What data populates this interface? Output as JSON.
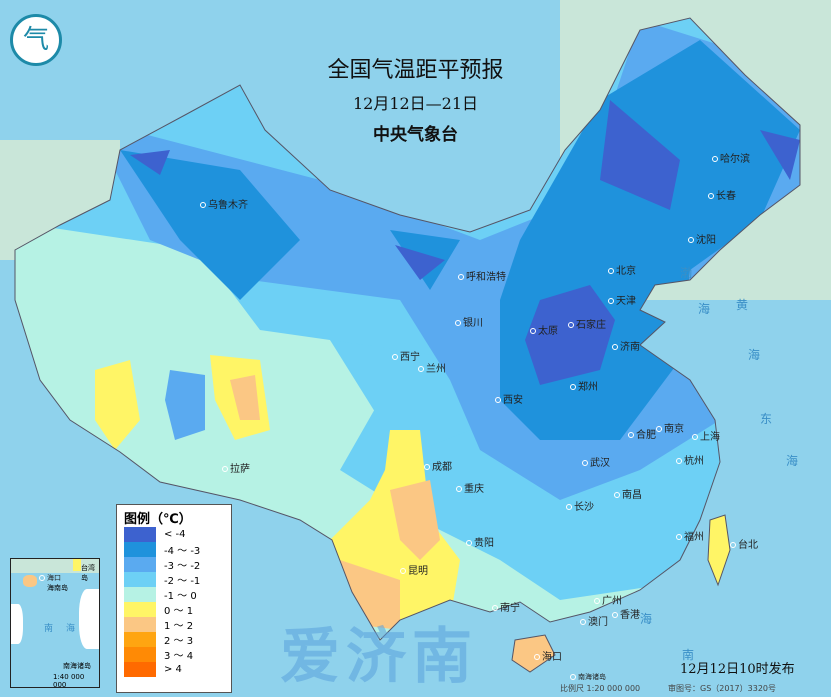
{
  "header": {
    "title": "全国气温距平预报",
    "period": "12月12日—21日",
    "issuer": "中央气象台",
    "logo_text": "气"
  },
  "legend": {
    "title": "图例（℃）",
    "items": [
      {
        "label": "< -4",
        "color": "#3d62cf"
      },
      {
        "label": "-4 ～ -3",
        "color": "#1f92dc"
      },
      {
        "label": "-3 ～ -2",
        "color": "#5aaaf0"
      },
      {
        "label": "-2 ～ -1",
        "color": "#6dd0f5"
      },
      {
        "label": "-1 ～ 0",
        "color": "#b6f2e4"
      },
      {
        "label": "0 ～ 1",
        "color": "#fff566"
      },
      {
        "label": "1 ～ 2",
        "color": "#fbc784"
      },
      {
        "label": "2 ～ 3",
        "color": "#ffa511"
      },
      {
        "label": "3 ～ 4",
        "color": "#ff8a05"
      },
      {
        "label": "> 4",
        "color": "#ff6a00"
      }
    ]
  },
  "cities": [
    "乌鲁木齐",
    "哈尔滨",
    "长春",
    "沈阳",
    "呼和浩特",
    "北京",
    "天津",
    "石家庄",
    "太原",
    "济南",
    "银川",
    "西宁",
    "兰州",
    "郑州",
    "西安",
    "拉萨",
    "成都",
    "重庆",
    "武汉",
    "合肥",
    "南京",
    "上海",
    "杭州",
    "长沙",
    "南昌",
    "贵阳",
    "昆明",
    "福州",
    "台北",
    "南宁",
    "广州",
    "香港",
    "澳门",
    "海口",
    "南海诸岛"
  ],
  "seas": [
    "渤",
    "海",
    "黄",
    "海",
    "东",
    "海",
    "南",
    "海"
  ],
  "inset": {
    "labels": [
      "海口",
      "海南岛",
      "台湾岛",
      "南",
      "海",
      "南海诸岛"
    ],
    "scale": "1:40 000 000"
  },
  "footer": {
    "issued": "12月12日10时发布",
    "scale": "比例尺 1:20 000 000",
    "review": "审图号：GS（2017）3320号"
  },
  "watermark": "爱济南"
}
